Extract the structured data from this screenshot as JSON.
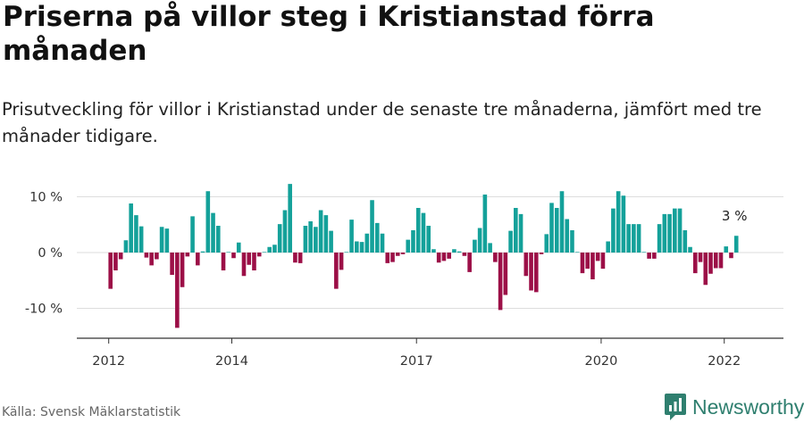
{
  "title": "Priserna på villor steg i Kristianstad förra månaden",
  "subtitle": "Prisutveckling för villor i Kristianstad under de senaste tre månaderna, jämfört med tre månader tidigare.",
  "source": "Källa: Svensk Mäklarstatistik",
  "brand": "Newsworthy",
  "colors": {
    "positive": "#14a19a",
    "negative": "#9c0f47",
    "grid": "#dddddd",
    "axis": "#333333",
    "brand": "#2f7f6f"
  },
  "chart_data": {
    "type": "bar",
    "title": "Priserna på villor steg i Kristianstad förra månaden",
    "xlabel": "",
    "ylabel": "",
    "ylim": [
      -15,
      13
    ],
    "y_ticks": [
      {
        "value": 10,
        "label": "10 %"
      },
      {
        "value": 0,
        "label": "0 %"
      },
      {
        "value": -10,
        "label": "-10 %"
      }
    ],
    "x_ticks": [
      {
        "year": 2012,
        "label": "2012"
      },
      {
        "year": 2014,
        "label": "2014"
      },
      {
        "year": 2017,
        "label": "2017"
      },
      {
        "year": 2020,
        "label": "2020"
      },
      {
        "year": 2022,
        "label": "2022"
      }
    ],
    "start": {
      "year": 2012,
      "month": 1
    },
    "last_label": "3 %",
    "values": [
      -6.5,
      -3.2,
      -1.2,
      2.2,
      8.8,
      6.7,
      4.7,
      -0.9,
      -2.3,
      -1.2,
      4.6,
      4.3,
      -4.0,
      -13.5,
      -6.2,
      -0.7,
      6.5,
      -2.3,
      0.2,
      11.0,
      7.1,
      4.8,
      -3.2,
      0.1,
      -1.0,
      1.8,
      -4.2,
      -2.2,
      -3.2,
      -0.7,
      0.1,
      1.0,
      1.4,
      5.1,
      7.6,
      12.3,
      -1.8,
      -1.9,
      4.8,
      5.6,
      4.6,
      7.6,
      6.7,
      3.9,
      -6.5,
      -3.1,
      0.1,
      5.9,
      2.0,
      1.9,
      3.4,
      9.4,
      5.3,
      3.4,
      -1.9,
      -1.7,
      -0.6,
      -0.3,
      2.3,
      4.0,
      8.0,
      7.1,
      4.8,
      0.6,
      -1.8,
      -1.5,
      -1.1,
      0.6,
      0.2,
      -0.6,
      -3.5,
      2.3,
      4.4,
      10.4,
      1.7,
      -1.7,
      -10.3,
      -7.6,
      3.9,
      8.0,
      6.9,
      -4.2,
      -6.8,
      -7.1,
      -0.3,
      3.3,
      8.9,
      8.0,
      11.0,
      6.0,
      4.0,
      0.1,
      -3.7,
      -2.9,
      -4.8,
      -1.5,
      -2.9,
      2.0,
      7.9,
      11.0,
      10.2,
      5.1,
      5.1,
      5.1,
      0.1,
      -1.1,
      -1.1,
      5.1,
      6.9,
      6.9,
      7.9,
      7.9,
      4.0,
      1.0,
      -3.7,
      -1.7,
      -5.8,
      -3.8,
      -2.8,
      -2.8,
      1.1,
      -1.0,
      3.0
    ]
  }
}
